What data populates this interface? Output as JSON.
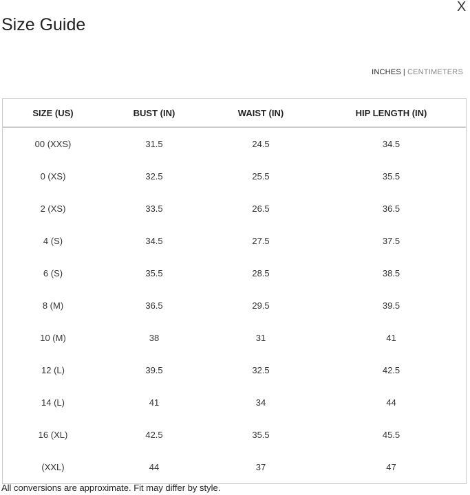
{
  "title": "Size Guide",
  "close_label": "X",
  "units": {
    "inches": "INCHES",
    "separator": "|",
    "centimeters": "CENTIMETERS",
    "selected": "INCHES"
  },
  "table": {
    "headers": [
      "SIZE (US)",
      "BUST (IN)",
      "WAIST (IN)",
      "HIP LENGTH (IN)"
    ],
    "rows": [
      [
        "00 (XXS)",
        "31.5",
        "24.5",
        "34.5"
      ],
      [
        "0 (XS)",
        "32.5",
        "25.5",
        "35.5"
      ],
      [
        "2 (XS)",
        "33.5",
        "26.5",
        "36.5"
      ],
      [
        "4 (S)",
        "34.5",
        "27.5",
        "37.5"
      ],
      [
        "6 (S)",
        "35.5",
        "28.5",
        "38.5"
      ],
      [
        "8 (M)",
        "36.5",
        "29.5",
        "39.5"
      ],
      [
        "10 (M)",
        "38",
        "31",
        "41"
      ],
      [
        "12 (L)",
        "39.5",
        "32.5",
        "42.5"
      ],
      [
        "14 (L)",
        "41",
        "34",
        "44"
      ],
      [
        "16 (XL)",
        "42.5",
        "35.5",
        "45.5"
      ],
      [
        "(XXL)",
        "44",
        "37",
        "47"
      ]
    ]
  },
  "note": "All conversions are approximate. Fit may differ by style."
}
